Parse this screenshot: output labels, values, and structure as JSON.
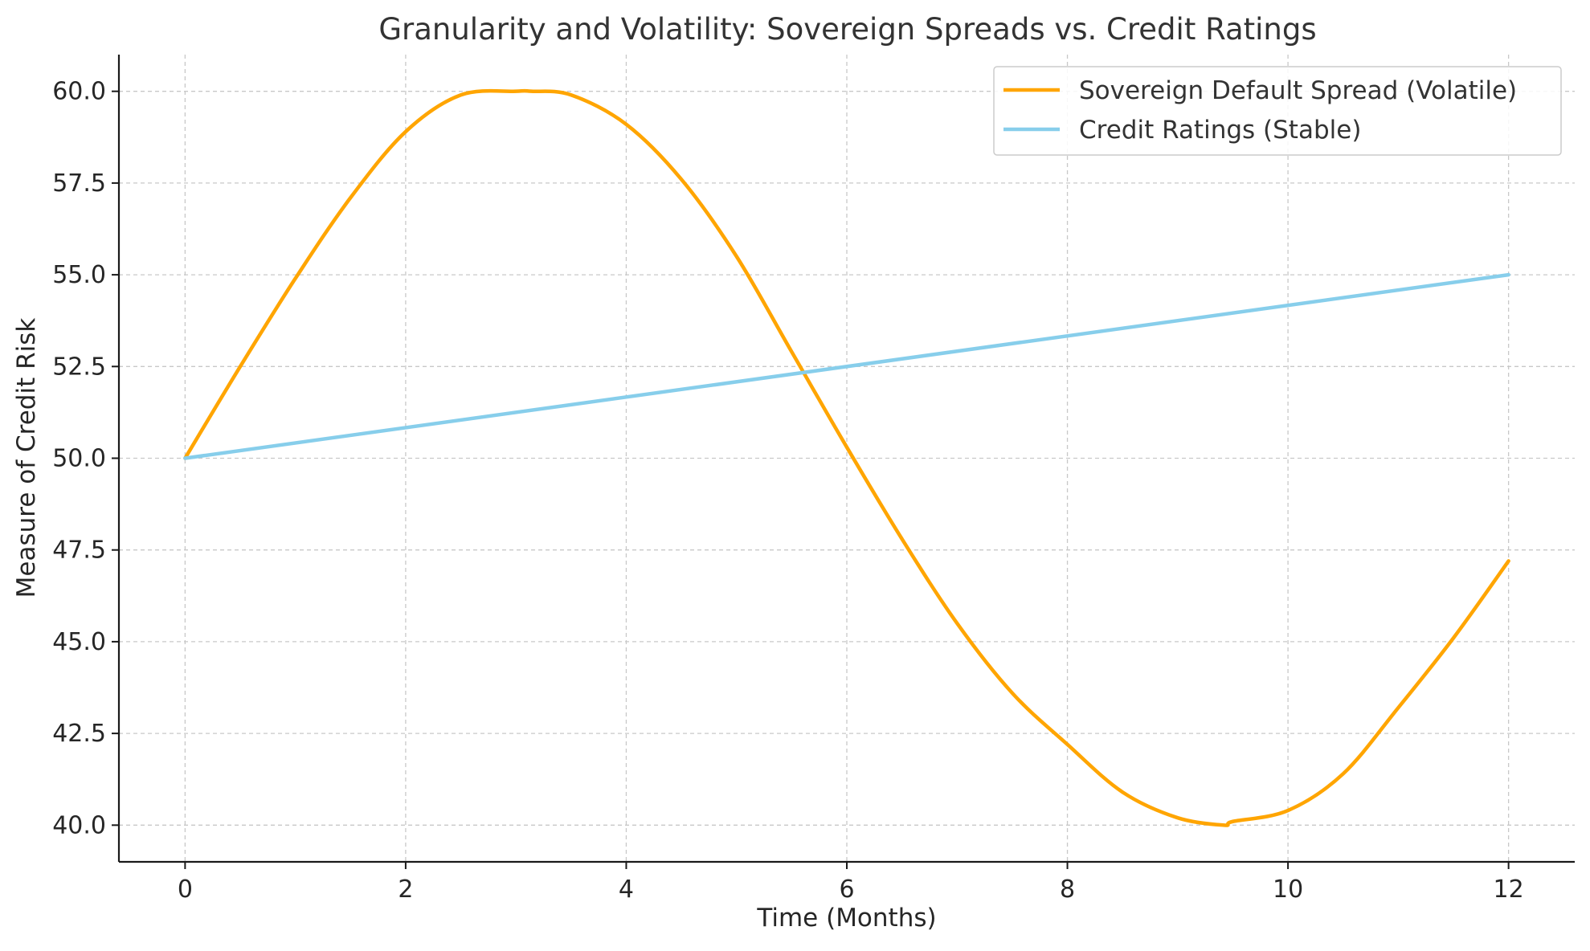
{
  "chart_data": {
    "type": "line",
    "title": "Granularity and Volatility: Sovereign Spreads vs. Credit Ratings",
    "xlabel": "Time (Months)",
    "ylabel": "Measure of Credit Risk",
    "xlim": [
      -0.6,
      12.6
    ],
    "ylim": [
      39.0,
      61.0
    ],
    "x_ticks": [
      0,
      2,
      4,
      6,
      8,
      10,
      12
    ],
    "x_tick_labels": [
      "0",
      "2",
      "4",
      "6",
      "8",
      "10",
      "12"
    ],
    "y_ticks": [
      40.0,
      42.5,
      45.0,
      47.5,
      50.0,
      52.5,
      55.0,
      57.5,
      60.0
    ],
    "y_tick_labels": [
      "40.0",
      "42.5",
      "45.0",
      "47.5",
      "50.0",
      "52.5",
      "55.0",
      "57.5",
      "60.0"
    ],
    "grid": true,
    "legend_position": "top-right",
    "series": [
      {
        "name": "Sovereign Default Spread (Volatile)",
        "color": "#FFA500",
        "x": [
          0,
          0.5,
          1,
          1.5,
          2,
          2.5,
          3,
          3.14,
          3.5,
          4,
          4.5,
          5,
          5.5,
          6,
          6.5,
          7,
          7.5,
          8,
          8.5,
          9,
          9.42,
          9.5,
          10,
          10.5,
          11,
          11.5,
          12
        ],
        "y": [
          50.0,
          52.5,
          54.9,
          57.1,
          58.9,
          59.9,
          60.0,
          60.0,
          59.9,
          59.1,
          57.6,
          55.5,
          52.9,
          50.3,
          47.8,
          45.5,
          43.6,
          42.2,
          40.9,
          40.2,
          40.0,
          40.1,
          40.4,
          41.4,
          43.2,
          45.1,
          47.2
        ]
      },
      {
        "name": "Credit Ratings (Stable)",
        "color": "#87CEEB",
        "x": [
          0,
          12
        ],
        "y": [
          50.0,
          55.0
        ]
      }
    ]
  }
}
